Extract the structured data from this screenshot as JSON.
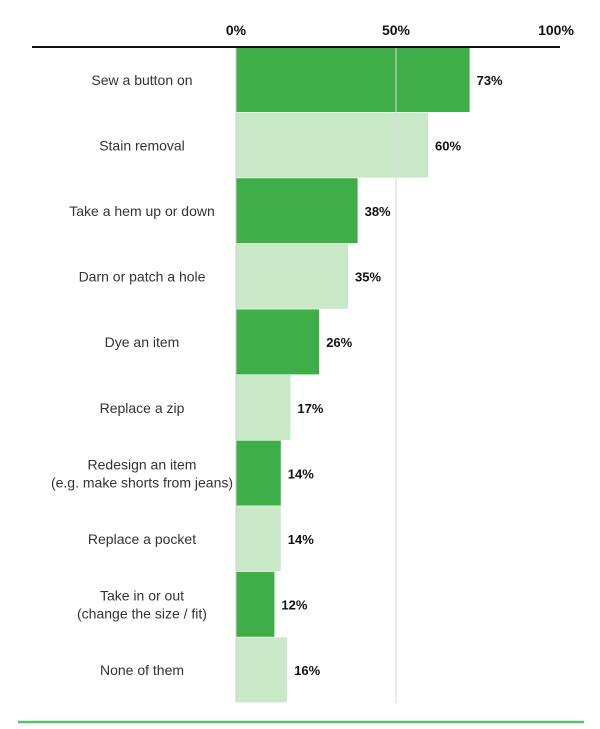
{
  "chart_data": {
    "type": "bar",
    "orientation": "horizontal",
    "categories": [
      [
        "Sew a button on"
      ],
      [
        "Stain removal"
      ],
      [
        "Take a hem up or down"
      ],
      [
        "Darn or patch a hole"
      ],
      [
        "Dye an item"
      ],
      [
        "Replace a zip"
      ],
      [
        "Redesign an item",
        "(e.g. make shorts from jeans)"
      ],
      [
        "Replace a pocket"
      ],
      [
        "Take in or out",
        "(change the size / fit)"
      ],
      [
        "None of them"
      ]
    ],
    "values": [
      73,
      60,
      38,
      35,
      26,
      17,
      14,
      14,
      12,
      16
    ],
    "value_labels": [
      "73%",
      "60%",
      "38%",
      "35%",
      "26%",
      "17%",
      "14%",
      "14%",
      "12%",
      "16%"
    ],
    "xlim": [
      0,
      100
    ],
    "ticks": [
      0,
      50,
      100
    ],
    "tick_labels": [
      "0%",
      "50%",
      "100%"
    ],
    "grid": true,
    "colors": {
      "dark": "#3fae49",
      "light": "#c9e8c8",
      "accent": "#5cbf6a",
      "axis": "#111111"
    }
  }
}
